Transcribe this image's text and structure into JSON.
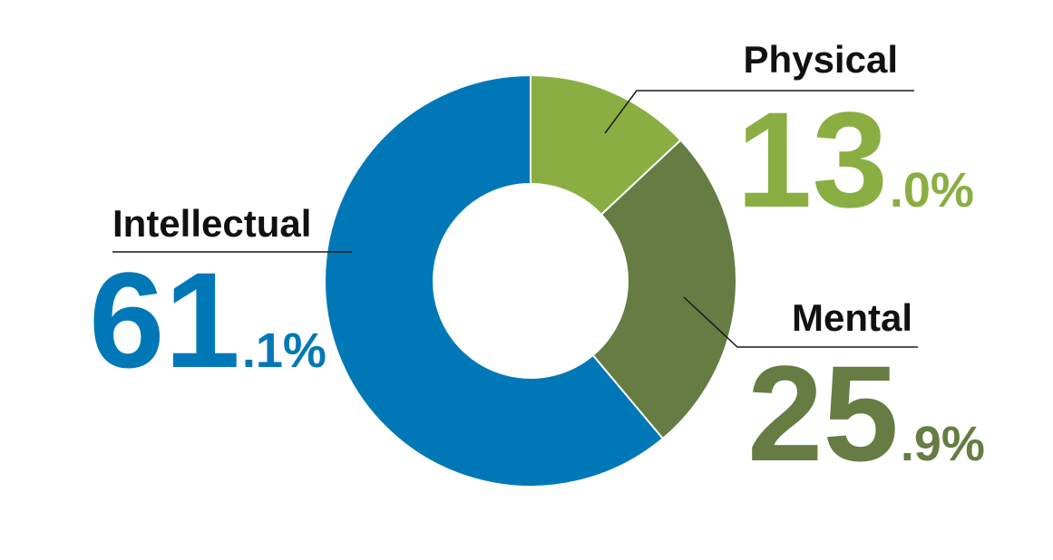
{
  "chart_data": {
    "type": "pie",
    "donut": true,
    "categories": [
      "Physical",
      "Mental",
      "Intellectual"
    ],
    "values": [
      13.0,
      25.9,
      61.1
    ],
    "unit": "%",
    "colors": [
      "#8aae41",
      "#667c43",
      "#0078b8"
    ],
    "labels": [
      {
        "name": "Physical",
        "int_part": "13",
        "frac_part": ".0%",
        "color": "#8aae41"
      },
      {
        "name": "Mental",
        "int_part": "25",
        "frac_part": ".9%",
        "color": "#667c43"
      },
      {
        "name": "Intellectual",
        "int_part": "61",
        "frac_part": ".1%",
        "color": "#0078b8"
      }
    ],
    "start_angle": "12 o'clock",
    "direction": "clockwise"
  }
}
